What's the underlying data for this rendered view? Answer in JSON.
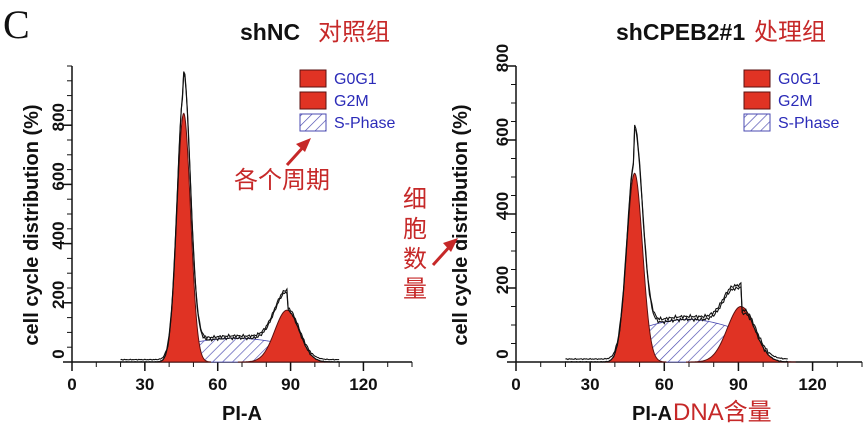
{
  "figure": {
    "panel_letter": "C",
    "annotations": {
      "each_phase": "各个周期",
      "cell_count": [
        "细",
        "胞",
        "数",
        "量"
      ]
    }
  },
  "colors": {
    "fill": "#e03324",
    "fill_stroke": "#5a1010",
    "s_phase_hatch": "#4a4ab0",
    "annotation": "#c62828",
    "legend_text": "#2b2bb8"
  },
  "chart_data": [
    {
      "type": "area",
      "title": "shNC",
      "title_annotation": "对照组",
      "xlabel": "PI-A",
      "xlabel_annotation": "",
      "ylabel": "cell cycle distribution (%)",
      "xlim": [
        0,
        140
      ],
      "ylim": [
        0,
        1000
      ],
      "xticks": [
        0,
        30,
        60,
        90,
        120
      ],
      "yticks": [
        0,
        200,
        400,
        600,
        800
      ],
      "grid": false,
      "legend_position": "top-right",
      "legend": [
        {
          "label": "G0G1",
          "style": "solid"
        },
        {
          "label": "G2M",
          "style": "solid"
        },
        {
          "label": "S-Phase",
          "style": "hatch"
        }
      ],
      "series": [
        {
          "name": "G0G1",
          "type": "gaussian",
          "center": 46,
          "height": 840,
          "sigma": 2.8
        },
        {
          "name": "G2M",
          "type": "gaussian",
          "center": 88.5,
          "height": 175,
          "sigma": 5
        },
        {
          "name": "S-Phase",
          "type": "band",
          "from": 46,
          "to": 88.5,
          "level": 70
        }
      ],
      "histogram_peaks": [
        {
          "x": 46,
          "y": 975
        },
        {
          "x": 88,
          "y": 235
        }
      ]
    },
    {
      "type": "area",
      "title": "shCPEB2#1",
      "title_annotation": "处理组",
      "xlabel": "PI-A",
      "xlabel_annotation": "DNA含量",
      "ylabel": "cell cycle distribution (%)",
      "xlim": [
        0,
        140
      ],
      "ylim": [
        0,
        800
      ],
      "xticks": [
        0,
        30,
        60,
        90,
        120
      ],
      "yticks": [
        0,
        200,
        400,
        600,
        800
      ],
      "grid": false,
      "legend_position": "top-right",
      "legend": [
        {
          "label": "G0G1",
          "style": "solid"
        },
        {
          "label": "G2M",
          "style": "solid"
        },
        {
          "label": "S-Phase",
          "style": "hatch"
        }
      ],
      "series": [
        {
          "name": "G0G1",
          "type": "gaussian",
          "center": 48,
          "height": 510,
          "sigma": 3.2
        },
        {
          "name": "G2M",
          "type": "gaussian",
          "center": 91,
          "height": 150,
          "sigma": 5.5
        },
        {
          "name": "S-Phase",
          "type": "band",
          "from": 48,
          "to": 91,
          "level": 100
        }
      ],
      "histogram_peaks": [
        {
          "x": 48,
          "y": 630
        },
        {
          "x": 90,
          "y": 200
        }
      ]
    }
  ]
}
